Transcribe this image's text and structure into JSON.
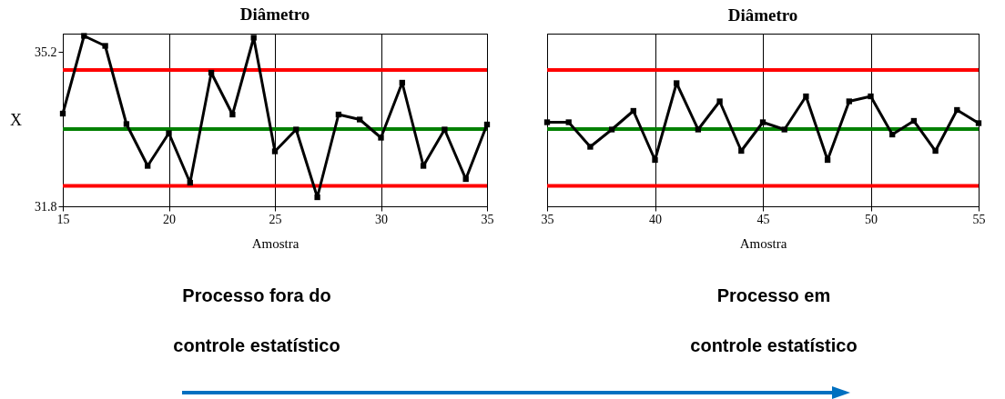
{
  "chart_data": [
    {
      "type": "line",
      "title": "Diâmetro",
      "xlabel": "Amostra",
      "ylabel": "X",
      "xlim": [
        15,
        35
      ],
      "xticks": [
        15,
        20,
        25,
        30,
        35
      ],
      "ylim": [
        31.8,
        35.6
      ],
      "yticks": [
        31.8,
        35.2
      ],
      "grid": "x",
      "marker": "square",
      "line_style": "solid",
      "x": [
        15,
        16,
        17,
        18,
        19,
        20,
        21,
        22,
        23,
        24,
        25,
        26,
        27,
        28,
        29,
        30,
        31,
        32,
        33,
        34,
        35
      ],
      "series": [
        {
          "color": "#000000",
          "values": [
            33.84,
            35.55,
            35.33,
            33.61,
            32.69,
            33.41,
            32.32,
            34.74,
            33.82,
            35.51,
            33.01,
            33.49,
            32.0,
            33.82,
            33.71,
            33.31,
            34.52,
            32.69,
            33.49,
            32.4,
            33.6
          ]
        }
      ],
      "ref_lines": [
        {
          "axis": "y",
          "value": 34.8,
          "color": "#ff0000"
        },
        {
          "axis": "y",
          "value": 33.5,
          "color": "#008000"
        },
        {
          "axis": "y",
          "value": 32.25,
          "color": "#ff0000"
        }
      ],
      "annotations": [
        "Processo fora do",
        "controle estatístico"
      ]
    },
    {
      "type": "line",
      "title": "Diâmetro",
      "xlabel": "Amostra",
      "xlim": [
        35,
        55
      ],
      "xticks": [
        35,
        40,
        45,
        50,
        55
      ],
      "ylim": [
        31.8,
        35.6
      ],
      "grid": "x",
      "marker": "square",
      "line_style": "solid",
      "tick_labels": "x",
      "x": [
        35,
        36,
        37,
        38,
        39,
        40,
        41,
        42,
        43,
        44,
        45,
        46,
        47,
        48,
        49,
        50,
        51,
        52,
        53,
        54,
        55
      ],
      "series": [
        {
          "color": "#000000",
          "values": [
            33.65,
            33.65,
            33.11,
            33.49,
            33.9,
            32.82,
            34.51,
            33.49,
            34.11,
            33.02,
            33.65,
            33.49,
            34.22,
            32.82,
            34.11,
            34.22,
            33.38,
            33.68,
            33.02,
            33.92,
            33.63
          ]
        }
      ],
      "ref_lines": [
        {
          "axis": "y",
          "value": 34.8,
          "color": "#ff0000"
        },
        {
          "axis": "y",
          "value": 33.5,
          "color": "#008000"
        },
        {
          "axis": "y",
          "value": 32.25,
          "color": "#ff0000"
        }
      ],
      "annotations": [
        "Processo em",
        "controle estatístico"
      ]
    }
  ]
}
